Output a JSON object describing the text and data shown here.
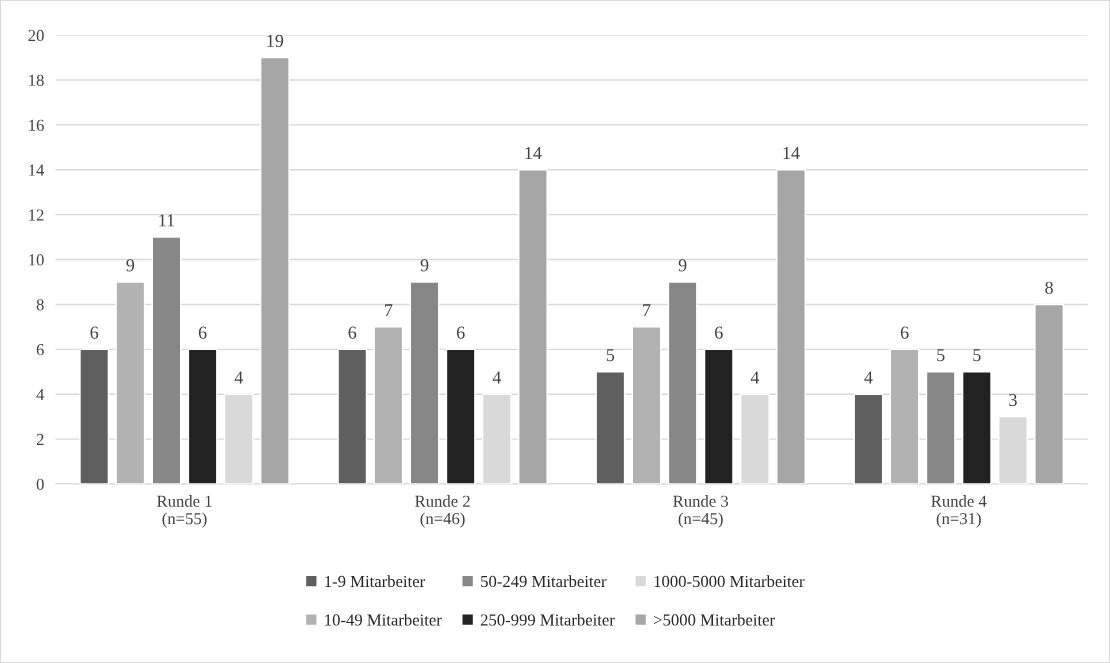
{
  "chart_data": {
    "type": "bar",
    "categories": [
      "Runde 1\n(n=55)",
      "Runde 2\n(n=46)",
      "Runde 3\n(n=45)",
      "Runde 4\n(n=31)"
    ],
    "series": [
      {
        "name": "1-9 Mitarbeiter",
        "color": "#5f5f5f",
        "values": [
          6,
          6,
          5,
          4
        ]
      },
      {
        "name": "10-49 Mitarbeiter",
        "color": "#b2b2b2",
        "values": [
          9,
          7,
          7,
          6
        ]
      },
      {
        "name": "50-249 Mitarbeiter",
        "color": "#878787",
        "values": [
          11,
          9,
          9,
          5
        ]
      },
      {
        "name": "250-999 Mitarbeiter",
        "color": "#222222",
        "values": [
          6,
          6,
          6,
          5
        ]
      },
      {
        "name": "1000-5000 Mitarbeiter",
        "color": "#d9d9d9",
        "values": [
          4,
          4,
          4,
          3
        ]
      },
      {
        "name": ">5000 Mitarbeiter",
        "color": "#a6a6a6",
        "values": [
          19,
          14,
          14,
          8
        ]
      }
    ],
    "ylim": [
      0,
      20
    ],
    "yticks": [
      0,
      2,
      4,
      6,
      8,
      10,
      12,
      14,
      16,
      18,
      20
    ],
    "grid": "y",
    "legend": "bottom",
    "data_labels": true
  }
}
